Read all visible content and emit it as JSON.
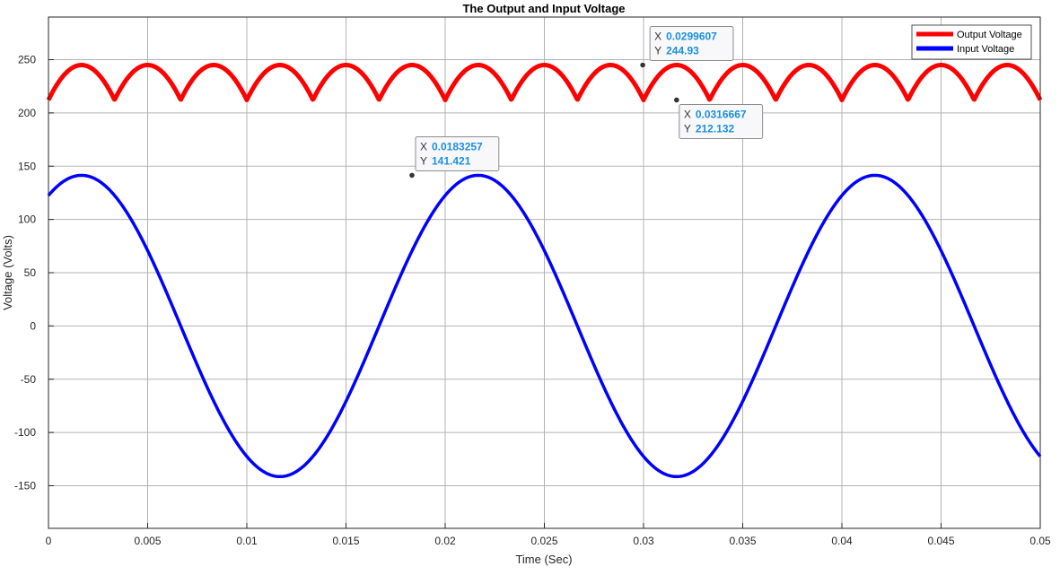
{
  "chart_data": {
    "type": "line",
    "title": "The Output and Input Voltage",
    "xlabel": "Time (Sec)",
    "ylabel": "Voltage (Volts)",
    "xlim": [
      0,
      0.05
    ],
    "ylim": [
      -190,
      290
    ],
    "xticks": [
      0,
      0.005,
      0.01,
      0.015,
      0.02,
      0.025,
      0.03,
      0.035,
      0.04,
      0.045,
      0.05
    ],
    "xtick_labels": [
      "0",
      "0.005",
      "0.01",
      "0.015",
      "0.02",
      "0.025",
      "0.03",
      "0.035",
      "0.04",
      "0.045",
      "0.05"
    ],
    "yticks": [
      -150,
      -100,
      -50,
      0,
      50,
      100,
      150,
      200,
      250
    ],
    "ytick_labels": [
      "-150",
      "-100",
      "-50",
      "0",
      "50",
      "100",
      "150",
      "200",
      "250"
    ],
    "grid": true,
    "legend_position": "top-right",
    "series": [
      {
        "name": "Output Voltage",
        "color": "#ff0000",
        "model": "abs(A*sin(2*pi*(3*f)*t + phase)) folded peaks",
        "frequency_hz": 300,
        "max": 244.93,
        "min": 212.132
      },
      {
        "name": "Input Voltage",
        "color": "#0000ff",
        "model": "A*sin(2*pi*f*t + phase)",
        "amplitude": 141.421,
        "frequency_hz": 50,
        "phase_rad": 1.0472
      }
    ],
    "datatips": [
      {
        "x": "0.0183257",
        "y": "141.421",
        "x_value": 0.0183257,
        "y_value": 141.421
      },
      {
        "x": "0.0299607",
        "y": "244.93",
        "x_value": 0.0299607,
        "y_value": 244.93
      },
      {
        "x": "0.0316667",
        "y": "212.132",
        "x_value": 0.0316667,
        "y_value": 212.132
      }
    ]
  },
  "datatip_labels": {
    "x_key": "X",
    "y_key": "Y"
  }
}
